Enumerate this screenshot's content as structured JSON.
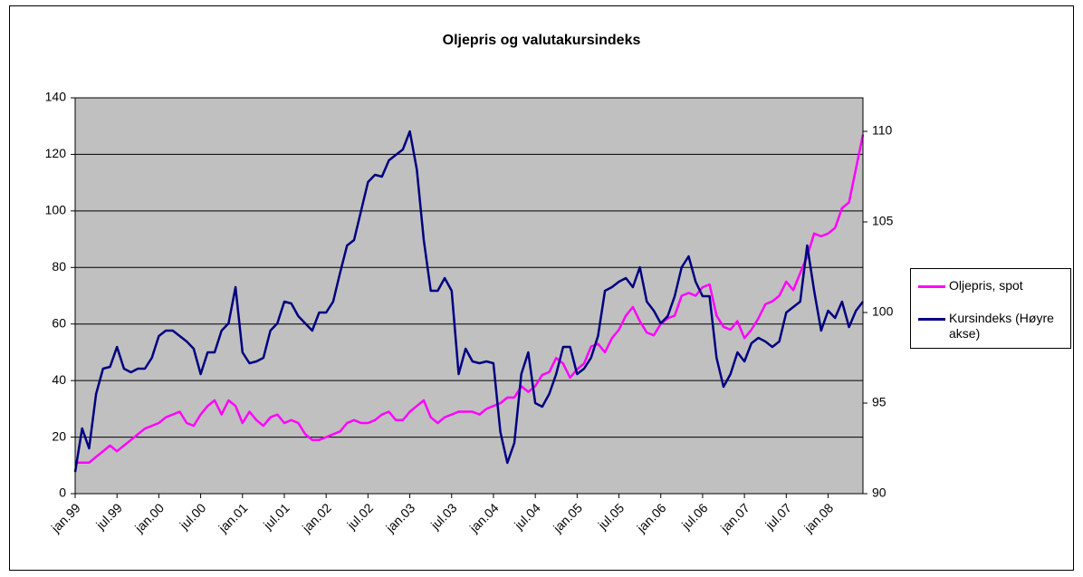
{
  "chart_data": {
    "type": "line",
    "title": "Oljepris og valutakursindeks",
    "categories": [
      "jan.99",
      null,
      null,
      null,
      null,
      null,
      "jul.99",
      null,
      null,
      null,
      null,
      null,
      "jan.00",
      null,
      null,
      null,
      null,
      null,
      "jul.00",
      null,
      null,
      null,
      null,
      null,
      "jan.01",
      null,
      null,
      null,
      null,
      null,
      "jul.01",
      null,
      null,
      null,
      null,
      null,
      "jan.02",
      null,
      null,
      null,
      null,
      null,
      "jul.02",
      null,
      null,
      null,
      null,
      null,
      "jan.03",
      null,
      null,
      null,
      null,
      null,
      "jul.03",
      null,
      null,
      null,
      null,
      null,
      "jan.04",
      null,
      null,
      null,
      null,
      null,
      "jul.04",
      null,
      null,
      null,
      null,
      null,
      "jan.05",
      null,
      null,
      null,
      null,
      null,
      "jul.05",
      null,
      null,
      null,
      null,
      null,
      "jan.06",
      null,
      null,
      null,
      null,
      null,
      "jul.06",
      null,
      null,
      null,
      null,
      null,
      "jan.07",
      null,
      null,
      null,
      null,
      null,
      "jul.07",
      null,
      null,
      null,
      null,
      null,
      "jan.08",
      null,
      null,
      null,
      null,
      null
    ],
    "series": [
      {
        "name": "Oljepris, spot",
        "color": "#ff00ff",
        "values": [
          11,
          11,
          11,
          13,
          15,
          17,
          15,
          17,
          19,
          21,
          23,
          24,
          25,
          27,
          28,
          29,
          25,
          24,
          28,
          31,
          33,
          28,
          33,
          31,
          25,
          29,
          26,
          24,
          27,
          28,
          25,
          26,
          25,
          21,
          19,
          19,
          20,
          21,
          22,
          25,
          26,
          25,
          25,
          26,
          28,
          29,
          26,
          26,
          29,
          31,
          33,
          27,
          25,
          27,
          28,
          29,
          29,
          29,
          28,
          30,
          31,
          32,
          34,
          34,
          38,
          36,
          38,
          42,
          43,
          48,
          46,
          41,
          44,
          46,
          52,
          53,
          50,
          55,
          58,
          63,
          66,
          61,
          57,
          56,
          60,
          62,
          63,
          70,
          71,
          70,
          73,
          74,
          63,
          59,
          58,
          61,
          55,
          58,
          62,
          67,
          68,
          70,
          75,
          72,
          78,
          84,
          92,
          91,
          92,
          94,
          101,
          103,
          115,
          127
        ]
      },
      {
        "name": "Kursindeks (Høyre akse)",
        "color": "#000080",
        "axis": "y2",
        "values": [
          91.2,
          93.6,
          92.5,
          95.5,
          96.9,
          97.0,
          98.1,
          96.9,
          96.7,
          96.9,
          96.9,
          97.5,
          98.7,
          99.0,
          99.0,
          98.7,
          98.4,
          98.0,
          96.6,
          97.8,
          97.8,
          99.0,
          99.4,
          101.4,
          97.8,
          97.2,
          97.3,
          97.5,
          99.0,
          99.4,
          100.6,
          100.5,
          99.8,
          99.4,
          99.0,
          100.0,
          100.0,
          100.6,
          102.2,
          103.7,
          104.0,
          105.6,
          107.2,
          107.6,
          107.5,
          108.4,
          108.7,
          109.0,
          110.0,
          107.9,
          104.0,
          101.2,
          101.2,
          101.9,
          101.2,
          96.6,
          98.0,
          97.3,
          97.2,
          97.3,
          97.2,
          93.4,
          91.7,
          92.8,
          96.6,
          97.8,
          95.0,
          94.8,
          95.5,
          96.6,
          98.1,
          98.1,
          96.6,
          96.9,
          97.5,
          98.7,
          101.2,
          101.4,
          101.7,
          101.9,
          101.4,
          102.5,
          100.6,
          100.1,
          99.4,
          99.8,
          100.9,
          102.5,
          103.1,
          101.7,
          100.9,
          100.9,
          97.5,
          95.9,
          96.6,
          97.8,
          97.3,
          98.3,
          98.6,
          98.4,
          98.1,
          98.4,
          100.0,
          100.3,
          100.6,
          103.7,
          101.2,
          99.0,
          100.1,
          99.7,
          100.6,
          99.2,
          100.1,
          100.6
        ]
      }
    ],
    "ylim": [
      0,
      140
    ],
    "yticks": [
      0,
      20,
      40,
      60,
      80,
      100,
      120,
      140
    ],
    "y2lim": [
      90,
      111.85
    ],
    "y2ticks": [
      90,
      95,
      100,
      105,
      110
    ],
    "grid": true,
    "legend": "right"
  }
}
